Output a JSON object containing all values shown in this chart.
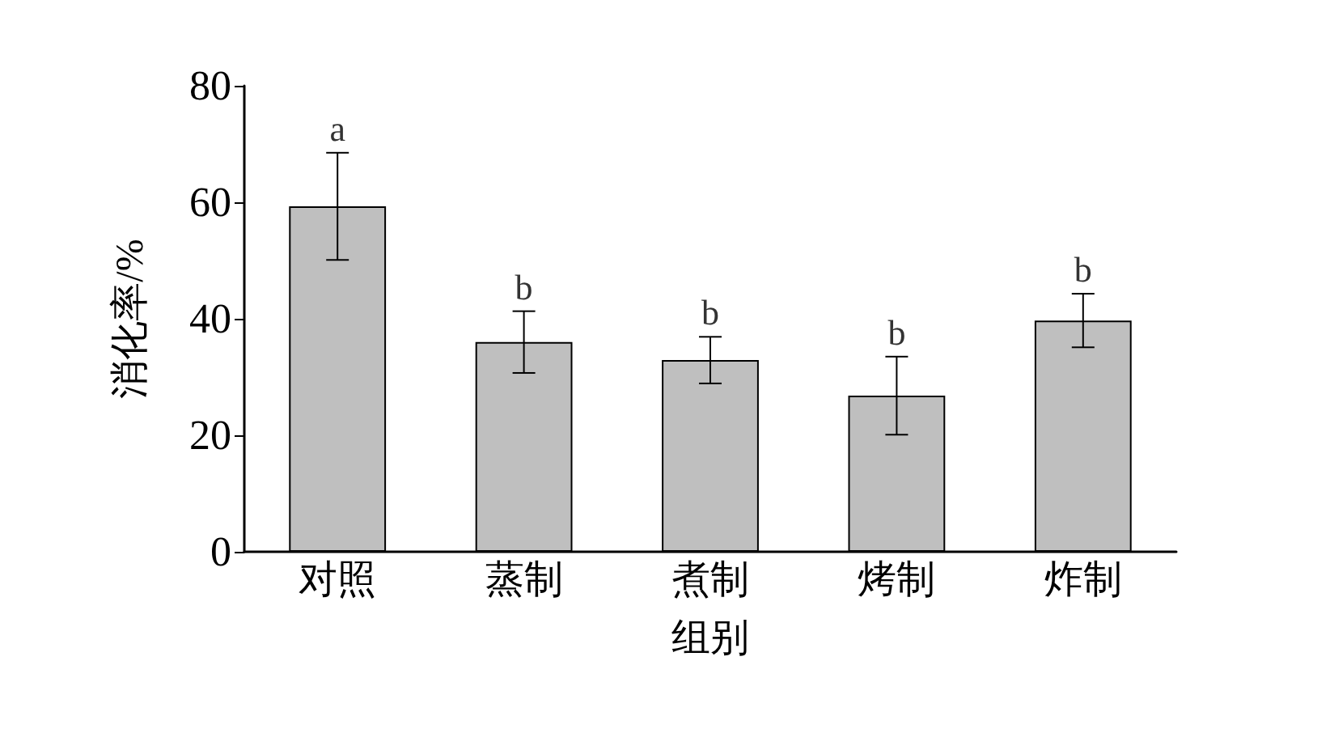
{
  "chart_data": {
    "type": "bar",
    "xlabel": "组别",
    "ylabel": "消化率/%",
    "categories": [
      "对照",
      "蒸制",
      "煮制",
      "烤制",
      "炸制"
    ],
    "series": [
      {
        "color": "#bfbfbf",
        "values": [
          59.3,
          36,
          32.9,
          26.8,
          39.7
        ],
        "errors": [
          9.2,
          5.3,
          4,
          6.7,
          4.6
        ]
      }
    ],
    "ylim": [
      0,
      80
    ],
    "yticks": [
      0,
      20,
      40,
      60,
      80
    ],
    "grid": false,
    "annotations": [
      {
        "text": "a",
        "x": "对照",
        "y": 68.5
      },
      {
        "text": "b",
        "x": "蒸制",
        "y": 41.3
      },
      {
        "text": "b",
        "x": "煮制",
        "y": 36.9
      },
      {
        "text": "b",
        "x": "烤制",
        "y": 33.5
      },
      {
        "text": "b",
        "x": "炸制",
        "y": 44.3
      }
    ]
  }
}
